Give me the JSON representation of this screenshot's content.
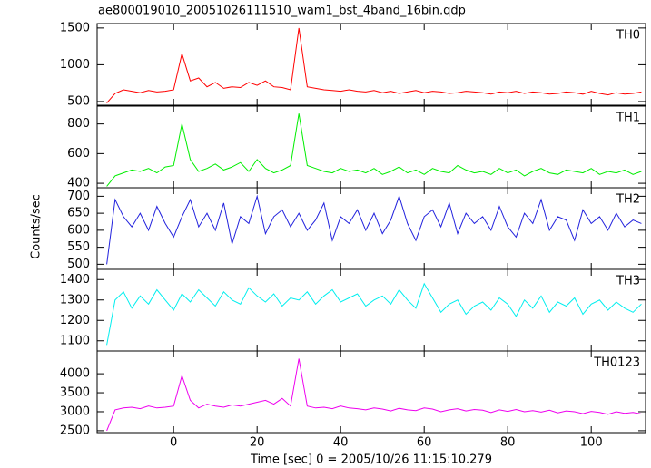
{
  "title": "ae800019010_20051026111510_wam1_bst_4band_16bin.qdp",
  "xlabel": "Time [sec] 0 = 2005/10/26 11:15:10.279",
  "ylabel": "Counts/sec",
  "chart_data": [
    {
      "type": "line",
      "xlim": [
        -18.3,
        113
      ],
      "xticks": [
        0,
        20,
        40,
        60,
        80,
        100
      ],
      "ylim": [
        450,
        1560
      ],
      "yticks": [
        500,
        1000,
        1500
      ],
      "x": [
        -16,
        -14,
        -12,
        -10,
        -8,
        -6,
        -4,
        -2,
        0,
        2,
        4,
        6,
        8,
        10,
        12,
        14,
        16,
        18,
        20,
        22,
        24,
        26,
        28,
        30,
        32,
        34,
        36,
        38,
        40,
        42,
        44,
        46,
        48,
        50,
        52,
        54,
        56,
        58,
        60,
        62,
        64,
        66,
        68,
        70,
        72,
        74,
        76,
        78,
        80,
        82,
        84,
        86,
        88,
        90,
        92,
        94,
        96,
        98,
        100,
        102,
        104,
        106,
        108,
        110,
        112
      ],
      "series": [
        {
          "name": "TH0",
          "color": "#ff0000",
          "values": [
            480,
            610,
            660,
            640,
            620,
            650,
            630,
            640,
            660,
            1150,
            780,
            820,
            700,
            760,
            680,
            700,
            690,
            760,
            720,
            780,
            700,
            690,
            660,
            1500,
            700,
            680,
            660,
            650,
            640,
            660,
            640,
            630,
            650,
            620,
            640,
            610,
            630,
            650,
            620,
            640,
            630,
            610,
            620,
            640,
            630,
            620,
            600,
            630,
            620,
            640,
            610,
            630,
            620,
            600,
            610,
            630,
            620,
            600,
            640,
            610,
            590,
            620,
            600,
            610,
            630
          ]
        }
      ]
    },
    {
      "type": "line",
      "xlim": [
        -18.3,
        113
      ],
      "xticks": [
        0,
        20,
        40,
        60,
        80,
        100
      ],
      "ylim": [
        370,
        920
      ],
      "yticks": [
        400,
        600,
        800
      ],
      "x": [
        -16,
        -14,
        -12,
        -10,
        -8,
        -6,
        -4,
        -2,
        0,
        2,
        4,
        6,
        8,
        10,
        12,
        14,
        16,
        18,
        20,
        22,
        24,
        26,
        28,
        30,
        32,
        34,
        36,
        38,
        40,
        42,
        44,
        46,
        48,
        50,
        52,
        54,
        56,
        58,
        60,
        62,
        64,
        66,
        68,
        70,
        72,
        74,
        76,
        78,
        80,
        82,
        84,
        86,
        88,
        90,
        92,
        94,
        96,
        98,
        100,
        102,
        104,
        106,
        108,
        110,
        112
      ],
      "series": [
        {
          "name": "TH1",
          "color": "#00ee00",
          "values": [
            380,
            450,
            470,
            490,
            480,
            500,
            470,
            510,
            520,
            800,
            560,
            480,
            500,
            530,
            490,
            510,
            540,
            480,
            560,
            500,
            470,
            490,
            520,
            870,
            520,
            500,
            480,
            470,
            500,
            480,
            490,
            470,
            500,
            460,
            480,
            510,
            470,
            490,
            460,
            500,
            480,
            470,
            520,
            490,
            470,
            480,
            460,
            500,
            470,
            490,
            450,
            480,
            500,
            470,
            460,
            490,
            480,
            470,
            500,
            460,
            480,
            470,
            490,
            460,
            480
          ]
        }
      ]
    },
    {
      "type": "line",
      "xlim": [
        -18.3,
        113
      ],
      "xticks": [
        0,
        20,
        40,
        60,
        80,
        100
      ],
      "ylim": [
        485,
        725
      ],
      "yticks": [
        500,
        550,
        600,
        650,
        700
      ],
      "x": [
        -16,
        -14,
        -12,
        -10,
        -8,
        -6,
        -4,
        -2,
        0,
        2,
        4,
        6,
        8,
        10,
        12,
        14,
        16,
        18,
        20,
        22,
        24,
        26,
        28,
        30,
        32,
        34,
        36,
        38,
        40,
        42,
        44,
        46,
        48,
        50,
        52,
        54,
        56,
        58,
        60,
        62,
        64,
        66,
        68,
        70,
        72,
        74,
        76,
        78,
        80,
        82,
        84,
        86,
        88,
        90,
        92,
        94,
        96,
        98,
        100,
        102,
        104,
        106,
        108,
        110,
        112
      ],
      "series": [
        {
          "name": "TH2",
          "color": "#2222dd",
          "values": [
            500,
            690,
            640,
            610,
            650,
            600,
            670,
            620,
            580,
            640,
            690,
            610,
            650,
            600,
            680,
            560,
            640,
            620,
            700,
            590,
            640,
            660,
            610,
            650,
            600,
            630,
            680,
            570,
            640,
            620,
            660,
            600,
            650,
            590,
            630,
            700,
            620,
            570,
            640,
            660,
            610,
            680,
            590,
            650,
            620,
            640,
            600,
            670,
            610,
            580,
            650,
            620,
            690,
            600,
            640,
            630,
            570,
            660,
            620,
            640,
            600,
            650,
            610,
            630,
            620
          ]
        }
      ]
    },
    {
      "type": "line",
      "xlim": [
        -18.3,
        113
      ],
      "xticks": [
        0,
        20,
        40,
        60,
        80,
        100
      ],
      "ylim": [
        1050,
        1450
      ],
      "yticks": [
        1100,
        1200,
        1300,
        1400
      ],
      "x": [
        -16,
        -14,
        -12,
        -10,
        -8,
        -6,
        -4,
        -2,
        0,
        2,
        4,
        6,
        8,
        10,
        12,
        14,
        16,
        18,
        20,
        22,
        24,
        26,
        28,
        30,
        32,
        34,
        36,
        38,
        40,
        42,
        44,
        46,
        48,
        50,
        52,
        54,
        56,
        58,
        60,
        62,
        64,
        66,
        68,
        70,
        72,
        74,
        76,
        78,
        80,
        82,
        84,
        86,
        88,
        90,
        92,
        94,
        96,
        98,
        100,
        102,
        104,
        106,
        108,
        110,
        112
      ],
      "series": [
        {
          "name": "TH3",
          "color": "#00eeee",
          "values": [
            1080,
            1300,
            1340,
            1260,
            1320,
            1280,
            1350,
            1300,
            1250,
            1330,
            1290,
            1350,
            1310,
            1270,
            1340,
            1300,
            1280,
            1360,
            1320,
            1290,
            1330,
            1270,
            1310,
            1300,
            1340,
            1280,
            1320,
            1350,
            1290,
            1310,
            1330,
            1270,
            1300,
            1320,
            1280,
            1350,
            1300,
            1260,
            1380,
            1310,
            1240,
            1280,
            1300,
            1230,
            1270,
            1290,
            1250,
            1310,
            1280,
            1220,
            1300,
            1260,
            1320,
            1240,
            1290,
            1270,
            1310,
            1230,
            1280,
            1300,
            1250,
            1290,
            1260,
            1240,
            1280
          ]
        }
      ]
    },
    {
      "type": "line",
      "xlim": [
        -18.3,
        113
      ],
      "xticks": [
        0,
        20,
        40,
        60,
        80,
        100
      ],
      "ylim": [
        2450,
        4600
      ],
      "yticks": [
        2500,
        3000,
        3500,
        4000
      ],
      "x": [
        -16,
        -14,
        -12,
        -10,
        -8,
        -6,
        -4,
        -2,
        0,
        2,
        4,
        6,
        8,
        10,
        12,
        14,
        16,
        18,
        20,
        22,
        24,
        26,
        28,
        30,
        32,
        34,
        36,
        38,
        40,
        42,
        44,
        46,
        48,
        50,
        52,
        54,
        56,
        58,
        60,
        62,
        64,
        66,
        68,
        70,
        72,
        74,
        76,
        78,
        80,
        82,
        84,
        86,
        88,
        90,
        92,
        94,
        96,
        98,
        100,
        102,
        104,
        106,
        108,
        110,
        112
      ],
      "series": [
        {
          "name": "TH0123",
          "color": "#ee00ee",
          "values": [
            2500,
            3050,
            3100,
            3120,
            3080,
            3150,
            3100,
            3120,
            3150,
            3950,
            3300,
            3100,
            3200,
            3150,
            3120,
            3180,
            3150,
            3200,
            3250,
            3300,
            3200,
            3350,
            3150,
            4400,
            3150,
            3100,
            3120,
            3080,
            3150,
            3100,
            3080,
            3050,
            3100,
            3070,
            3020,
            3090,
            3050,
            3030,
            3100,
            3070,
            3000,
            3050,
            3080,
            3020,
            3060,
            3040,
            2980,
            3050,
            3010,
            3060,
            3000,
            3030,
            2990,
            3040,
            2970,
            3020,
            3000,
            2950,
            3010,
            2980,
            2930,
            3000,
            2960,
            2980,
            2940
          ]
        }
      ]
    }
  ]
}
